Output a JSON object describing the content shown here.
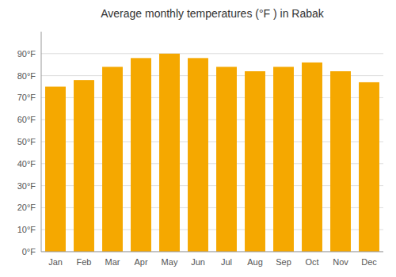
{
  "chart_data": {
    "type": "bar",
    "title": "Average monthly temperatures (°F ) in Rabak",
    "categories": [
      "Jan",
      "Feb",
      "Mar",
      "Apr",
      "May",
      "Jun",
      "Jul",
      "Aug",
      "Sep",
      "Oct",
      "Nov",
      "Dec"
    ],
    "values": [
      75,
      78,
      84,
      88,
      90,
      88,
      84,
      82,
      84,
      86,
      82,
      77
    ],
    "color": "#F5A800",
    "ylim": [
      0,
      100
    ],
    "yticks": [
      {
        "value": 0,
        "label": "0°F"
      },
      {
        "value": 10,
        "label": "10°F"
      },
      {
        "value": 20,
        "label": "20°F"
      },
      {
        "value": 30,
        "label": "30°F"
      },
      {
        "value": 40,
        "label": "40°F"
      },
      {
        "value": 50,
        "label": "50°F"
      },
      {
        "value": 60,
        "label": "60°F"
      },
      {
        "value": 70,
        "label": "70°F"
      },
      {
        "value": 80,
        "label": "80°F"
      },
      {
        "value": 90,
        "label": "90°F"
      }
    ],
    "grid": true
  }
}
